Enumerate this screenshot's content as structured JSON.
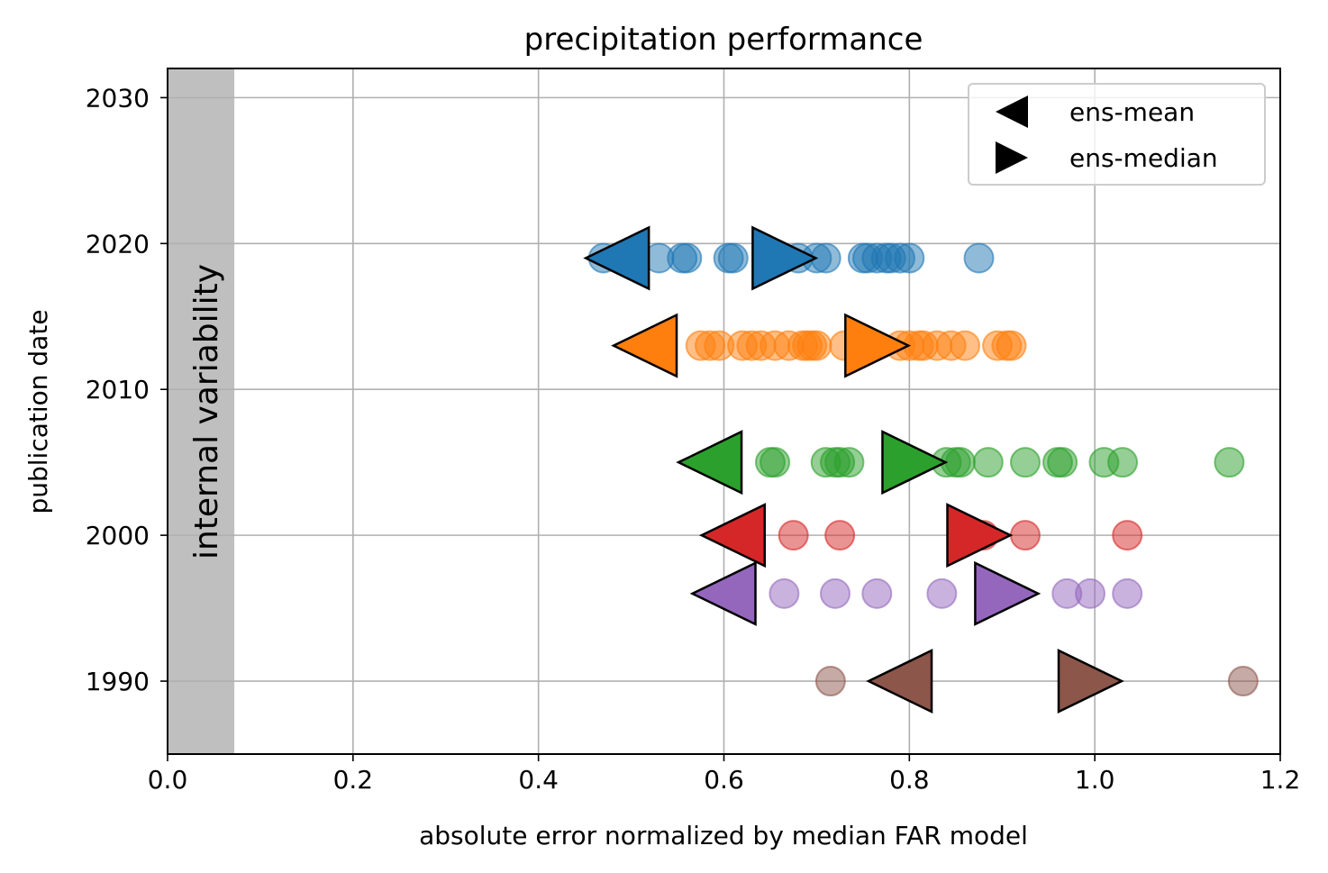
{
  "chart_data": {
    "type": "scatter",
    "title": "precipitation performance",
    "xlabel": "absolute error normalized by median FAR model",
    "ylabel": "publication date",
    "xlim": [
      0.0,
      1.2
    ],
    "ylim": [
      1985,
      2032
    ],
    "xticks": [
      "0.0",
      "0.2",
      "0.4",
      "0.6",
      "0.8",
      "1.0",
      "1.2"
    ],
    "yticks": [
      "1990",
      "2000",
      "2010",
      "2020",
      "2030"
    ],
    "grid": true,
    "legend_position": "top-right",
    "legend": [
      {
        "marker": "triangle-left",
        "label": "ens-mean"
      },
      {
        "marker": "triangle-right",
        "label": "ens-median"
      }
    ],
    "band": {
      "label": "internal variability",
      "x_range": [
        0.0,
        0.072
      ],
      "color": "#bfbfbf"
    },
    "series": [
      {
        "year": 2019,
        "color": "#1f77b4",
        "x": [
          0.47,
          0.53,
          0.555,
          0.56,
          0.605,
          0.61,
          0.65,
          0.68,
          0.7,
          0.71,
          0.75,
          0.755,
          0.765,
          0.775,
          0.78,
          0.79,
          0.8,
          0.875
        ],
        "ens_mean": 0.485,
        "ens_median": 0.665
      },
      {
        "year": 2013,
        "color": "#ff7f0e",
        "x": [
          0.575,
          0.585,
          0.595,
          0.62,
          0.63,
          0.64,
          0.655,
          0.67,
          0.685,
          0.69,
          0.695,
          0.7,
          0.73,
          0.76,
          0.79,
          0.8,
          0.81,
          0.815,
          0.83,
          0.845,
          0.86,
          0.895,
          0.905,
          0.91
        ],
        "ens_mean": 0.515,
        "ens_median": 0.765
      },
      {
        "year": 2005,
        "color": "#2ca02c",
        "x": [
          0.65,
          0.655,
          0.71,
          0.72,
          0.725,
          0.735,
          0.84,
          0.85,
          0.855,
          0.885,
          0.925,
          0.96,
          0.965,
          1.01,
          1.03,
          1.145
        ],
        "ens_mean": 0.585,
        "ens_median": 0.805
      },
      {
        "year": 2000,
        "color": "#d62728",
        "x": [
          0.675,
          0.725,
          0.88,
          0.925,
          1.035
        ],
        "ens_mean": 0.61,
        "ens_median": 0.875
      },
      {
        "year": 1996,
        "color": "#9467bd",
        "x": [
          0.665,
          0.72,
          0.765,
          0.835,
          0.97,
          0.995,
          1.035
        ],
        "ens_mean": 0.6,
        "ens_median": 0.905
      },
      {
        "year": 1990,
        "color": "#8c564b",
        "x": [
          0.715,
          1.16
        ],
        "ens_mean": 0.79,
        "ens_median": 0.995
      }
    ]
  }
}
